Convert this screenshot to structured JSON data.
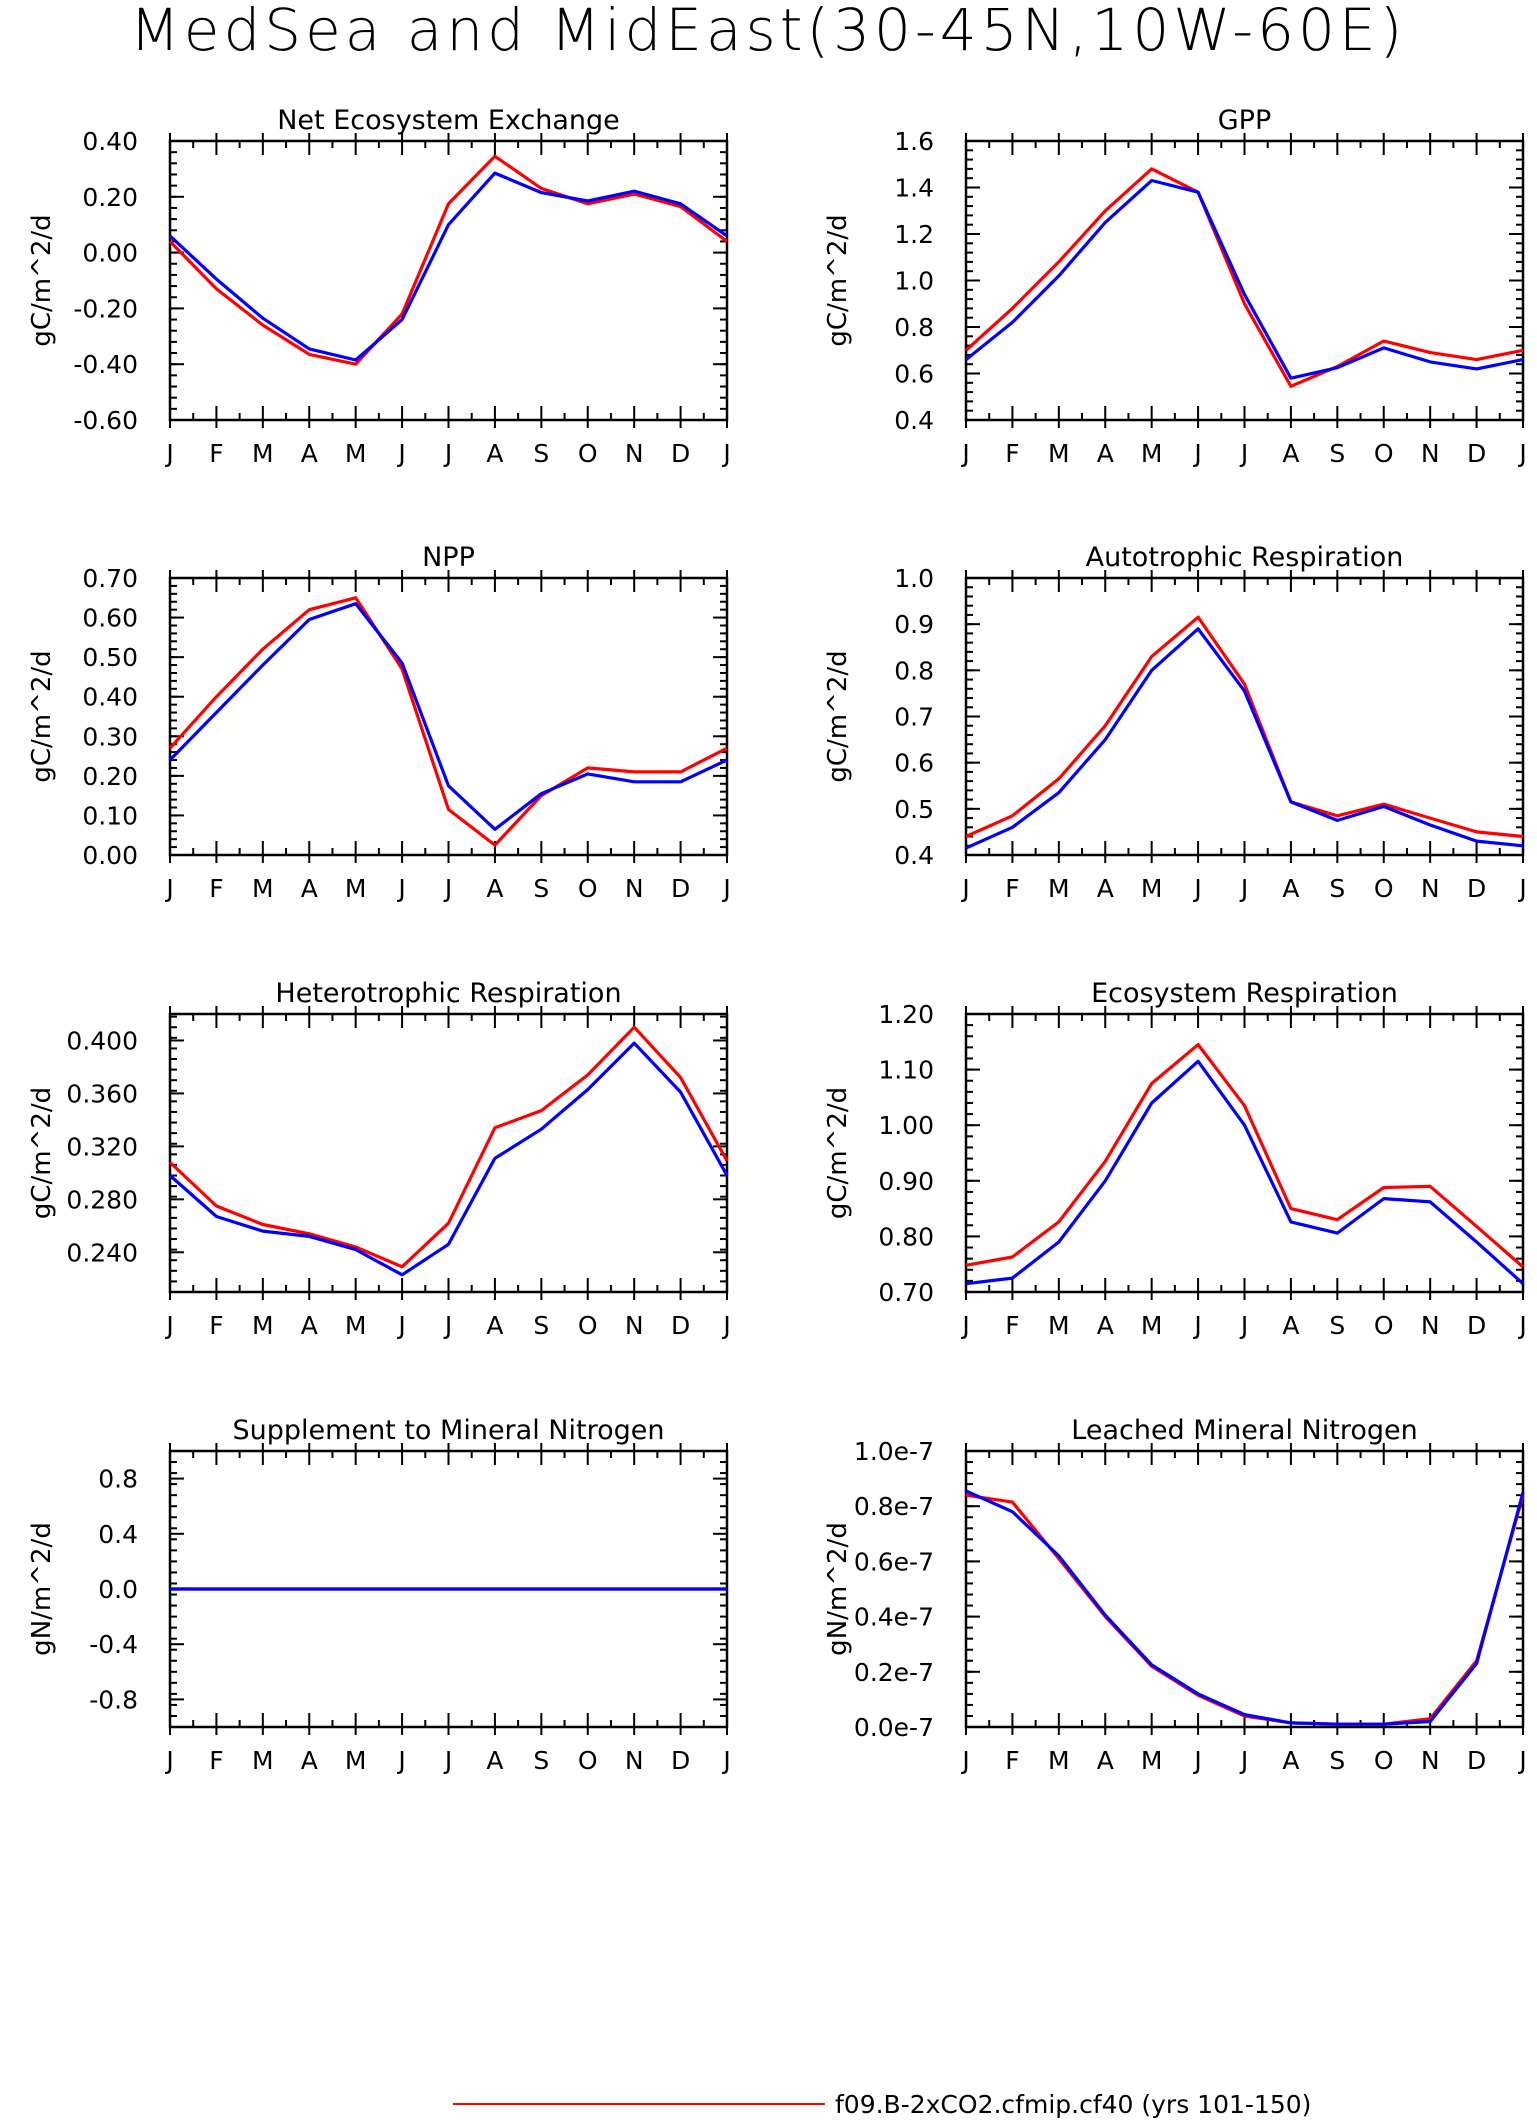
{
  "page_title": "MedSea and MidEast(30-45N,10W-60E)",
  "legend": [
    {
      "label": "f09.B-2xCO2.cfmip.cf40 (yrs 101-150)",
      "color": "#ff0000"
    }
  ],
  "chart_data": [
    {
      "type": "line",
      "title": "Net Ecosystem Exchange",
      "ylabel": "gC/m^2/d",
      "ylim": [
        -0.6,
        0.4
      ],
      "yticks": [
        -0.6,
        -0.4,
        -0.2,
        0.0,
        0.2,
        0.4
      ],
      "ytick_labels": [
        "-0.60",
        "-0.40",
        "-0.20",
        "0.00",
        "0.20",
        "0.40"
      ],
      "categories": [
        "J",
        "F",
        "M",
        "A",
        "M",
        "J",
        "J",
        "A",
        "S",
        "O",
        "N",
        "D",
        "J"
      ],
      "series": [
        {
          "color": "#ff0000",
          "values": [
            0.04,
            -0.13,
            -0.26,
            -0.365,
            -0.4,
            -0.22,
            0.175,
            0.345,
            0.23,
            0.175,
            0.21,
            0.165,
            0.04
          ]
        },
        {
          "color": "#0000ff",
          "values": [
            0.06,
            -0.095,
            -0.235,
            -0.345,
            -0.385,
            -0.24,
            0.1,
            0.285,
            0.215,
            0.185,
            0.22,
            0.175,
            0.06
          ]
        }
      ]
    },
    {
      "type": "line",
      "title": "GPP",
      "ylabel": "gC/m^2/d",
      "ylim": [
        0.4,
        1.6
      ],
      "yticks": [
        0.4,
        0.6,
        0.8,
        1.0,
        1.2,
        1.4,
        1.6
      ],
      "ytick_labels": [
        "0.4",
        "0.6",
        "0.8",
        "1.0",
        "1.2",
        "1.4",
        "1.6"
      ],
      "categories": [
        "J",
        "F",
        "M",
        "A",
        "M",
        "J",
        "J",
        "A",
        "S",
        "O",
        "N",
        "D",
        "J"
      ],
      "series": [
        {
          "color": "#ff0000",
          "values": [
            0.7,
            0.88,
            1.08,
            1.3,
            1.48,
            1.38,
            0.9,
            0.545,
            0.63,
            0.74,
            0.69,
            0.66,
            0.7
          ]
        },
        {
          "color": "#0000ff",
          "values": [
            0.66,
            0.82,
            1.02,
            1.25,
            1.43,
            1.38,
            0.94,
            0.58,
            0.625,
            0.71,
            0.65,
            0.62,
            0.66
          ]
        }
      ]
    },
    {
      "type": "line",
      "title": "NPP",
      "ylabel": "gC/m^2/d",
      "ylim": [
        0.0,
        0.7
      ],
      "yticks": [
        0.0,
        0.1,
        0.2,
        0.3,
        0.4,
        0.5,
        0.6,
        0.7
      ],
      "ytick_labels": [
        "0.00",
        "0.10",
        "0.20",
        "0.30",
        "0.40",
        "0.50",
        "0.60",
        "0.70"
      ],
      "categories": [
        "J",
        "F",
        "M",
        "A",
        "M",
        "J",
        "J",
        "A",
        "S",
        "O",
        "N",
        "D",
        "J"
      ],
      "series": [
        {
          "color": "#ff0000",
          "values": [
            0.27,
            0.4,
            0.52,
            0.62,
            0.65,
            0.47,
            0.115,
            0.025,
            0.15,
            0.22,
            0.21,
            0.21,
            0.27
          ]
        },
        {
          "color": "#0000ff",
          "values": [
            0.24,
            0.36,
            0.48,
            0.595,
            0.635,
            0.485,
            0.175,
            0.065,
            0.155,
            0.205,
            0.185,
            0.185,
            0.24
          ]
        }
      ]
    },
    {
      "type": "line",
      "title": "Autotrophic Respiration",
      "ylabel": "gC/m^2/d",
      "ylim": [
        0.4,
        1.0
      ],
      "yticks": [
        0.4,
        0.5,
        0.6,
        0.7,
        0.8,
        0.9,
        1.0
      ],
      "ytick_labels": [
        "0.4",
        "0.5",
        "0.6",
        "0.7",
        "0.8",
        "0.9",
        "1.0"
      ],
      "categories": [
        "J",
        "F",
        "M",
        "A",
        "M",
        "J",
        "J",
        "A",
        "S",
        "O",
        "N",
        "D",
        "J"
      ],
      "series": [
        {
          "color": "#ff0000",
          "values": [
            0.44,
            0.485,
            0.565,
            0.68,
            0.83,
            0.915,
            0.77,
            0.515,
            0.485,
            0.51,
            0.48,
            0.45,
            0.44
          ]
        },
        {
          "color": "#0000ff",
          "values": [
            0.415,
            0.46,
            0.535,
            0.65,
            0.8,
            0.89,
            0.755,
            0.515,
            0.475,
            0.505,
            0.465,
            0.43,
            0.42
          ]
        }
      ]
    },
    {
      "type": "line",
      "title": "Heterotrophic Respiration",
      "ylabel": "gC/m^2/d",
      "ylim": [
        0.21,
        0.42
      ],
      "yticks": [
        0.24,
        0.28,
        0.32,
        0.36,
        0.4
      ],
      "ytick_labels": [
        "0.240",
        "0.280",
        "0.320",
        "0.360",
        "0.400"
      ],
      "categories": [
        "J",
        "F",
        "M",
        "A",
        "M",
        "J",
        "J",
        "A",
        "S",
        "O",
        "N",
        "D",
        "J"
      ],
      "series": [
        {
          "color": "#ff0000",
          "values": [
            0.308,
            0.275,
            0.261,
            0.254,
            0.244,
            0.229,
            0.262,
            0.334,
            0.347,
            0.374,
            0.41,
            0.372,
            0.309
          ]
        },
        {
          "color": "#0000ff",
          "values": [
            0.298,
            0.267,
            0.256,
            0.252,
            0.242,
            0.223,
            0.246,
            0.311,
            0.333,
            0.363,
            0.398,
            0.361,
            0.298
          ]
        }
      ]
    },
    {
      "type": "line",
      "title": "Ecosystem Respiration",
      "ylabel": "gC/m^2/d",
      "ylim": [
        0.7,
        1.2
      ],
      "yticks": [
        0.7,
        0.8,
        0.9,
        1.0,
        1.1,
        1.2
      ],
      "ytick_labels": [
        "0.70",
        "0.80",
        "0.90",
        "1.00",
        "1.10",
        "1.20"
      ],
      "categories": [
        "J",
        "F",
        "M",
        "A",
        "M",
        "J",
        "J",
        "A",
        "S",
        "O",
        "N",
        "D",
        "J"
      ],
      "series": [
        {
          "color": "#ff0000",
          "values": [
            0.748,
            0.763,
            0.826,
            0.935,
            1.075,
            1.145,
            1.035,
            0.85,
            0.83,
            0.888,
            0.89,
            0.818,
            0.745
          ]
        },
        {
          "color": "#0000ff",
          "values": [
            0.715,
            0.725,
            0.79,
            0.9,
            1.04,
            1.115,
            1.0,
            0.826,
            0.806,
            0.868,
            0.862,
            0.79,
            0.715
          ]
        }
      ]
    },
    {
      "type": "line",
      "title": "Supplement to Mineral Nitrogen",
      "ylabel": "gN/m^2/d",
      "ylim": [
        -1.0,
        1.0
      ],
      "yticks": [
        -0.8,
        -0.4,
        0.0,
        0.4,
        0.8
      ],
      "ytick_labels": [
        "-0.8",
        "-0.4",
        "0.0",
        "0.4",
        "0.8"
      ],
      "categories": [
        "J",
        "F",
        "M",
        "A",
        "M",
        "J",
        "J",
        "A",
        "S",
        "O",
        "N",
        "D",
        "J"
      ],
      "series": [
        {
          "color": "#ff0000",
          "values": [
            0,
            0,
            0,
            0,
            0,
            0,
            0,
            0,
            0,
            0,
            0,
            0,
            0
          ]
        },
        {
          "color": "#0000ff",
          "values": [
            0,
            0,
            0,
            0,
            0,
            0,
            0,
            0,
            0,
            0,
            0,
            0,
            0
          ]
        }
      ]
    },
    {
      "type": "line",
      "title": "Leached Mineral Nitrogen",
      "ylabel": "gN/m^2/d",
      "ylim": [
        0.0,
        1e-07
      ],
      "yticks": [
        0.0,
        2e-08,
        4e-08,
        6e-08,
        8e-08,
        1e-07
      ],
      "ytick_labels": [
        "0.0e-7",
        "0.2e-7",
        "0.4e-7",
        "0.6e-7",
        "0.8e-7",
        "1.0e-7"
      ],
      "categories": [
        "J",
        "F",
        "M",
        "A",
        "M",
        "J",
        "J",
        "A",
        "S",
        "O",
        "N",
        "D",
        "J"
      ],
      "series": [
        {
          "color": "#ff0000",
          "values": [
            8.4e-08,
            8.15e-08,
            6.1e-08,
            4e-08,
            2.2e-08,
            1.15e-08,
            4e-09,
            1.5e-09,
            1e-09,
            1e-09,
            3e-09,
            2.4e-08,
            8.4e-08
          ]
        },
        {
          "color": "#0000ff",
          "values": [
            8.55e-08,
            7.8e-08,
            6.2e-08,
            4.05e-08,
            2.25e-08,
            1.2e-08,
            4.5e-09,
            1.5e-09,
            1e-09,
            1e-09,
            2e-09,
            2.3e-08,
            8.5e-08
          ]
        }
      ]
    }
  ]
}
